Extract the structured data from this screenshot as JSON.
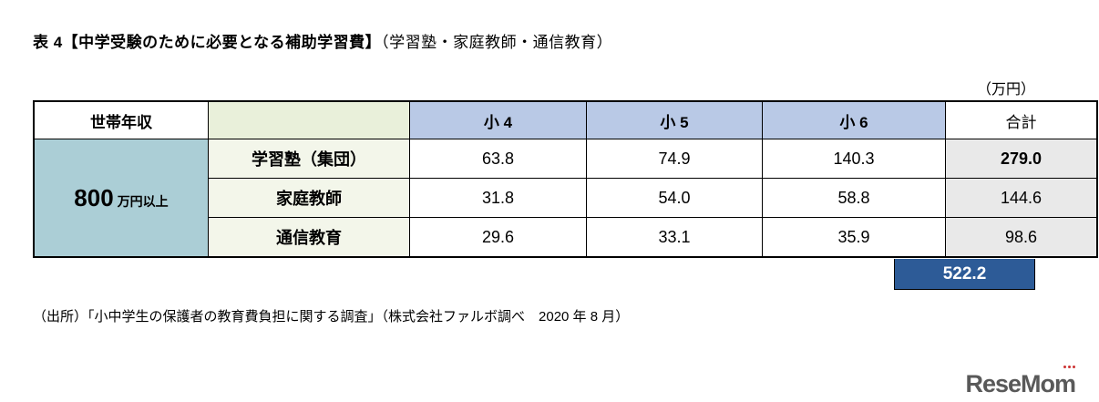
{
  "header": {
    "title_bold": "表 4【中学受験のために必要となる補助学習費】",
    "title_sub": "（学習塾・家庭教師・通信教育）",
    "unit": "（万円）"
  },
  "table": {
    "corner_label": "世帯年収",
    "columns": [
      "小 4",
      "小 5",
      "小 6",
      "合計"
    ],
    "income_value": "800",
    "income_suffix": "万円以上",
    "rows": [
      {
        "label": "学習塾（集団）",
        "values": [
          "63.8",
          "74.9",
          "140.3",
          "279.0"
        ]
      },
      {
        "label": "家庭教師",
        "values": [
          "31.8",
          "54.0",
          "58.8",
          "144.6"
        ]
      },
      {
        "label": "通信教育",
        "values": [
          "29.6",
          "33.1",
          "35.9",
          "98.6"
        ]
      }
    ],
    "grand_total": "522.2"
  },
  "footer": {
    "source": "（出所）「小中学生の保護者の教育費負担に関する調査」（株式会社ファルボ調べ　2020 年 8 月）",
    "logo": "ReseMom"
  },
  "colors": {
    "grade_header_bg": "#b9c9e6",
    "empty_header_bg": "#e9f0da",
    "income_bg": "#abced6",
    "row_label_bg": "#f3f6ea",
    "total_col_bg": "#e9e9e9",
    "grand_total_bg": "#2d5b97"
  },
  "chart_data": {
    "type": "table",
    "title": "表4【中学受験のために必要となる補助学習費】（学習塾・家庭教師・通信教育）",
    "unit": "万円",
    "income_bracket": "800万円以上",
    "columns": [
      "小4",
      "小5",
      "小6",
      "合計"
    ],
    "rows": [
      {
        "category": "学習塾（集団）",
        "values": [
          63.8,
          74.9,
          140.3,
          279.0
        ]
      },
      {
        "category": "家庭教師",
        "values": [
          31.8,
          54.0,
          58.8,
          144.6
        ]
      },
      {
        "category": "通信教育",
        "values": [
          29.6,
          33.1,
          35.9,
          98.6
        ]
      }
    ],
    "grand_total": 522.2,
    "source": "小中学生の保護者の教育費負担に関する調査（株式会社ファルボ調べ 2020年8月）"
  }
}
